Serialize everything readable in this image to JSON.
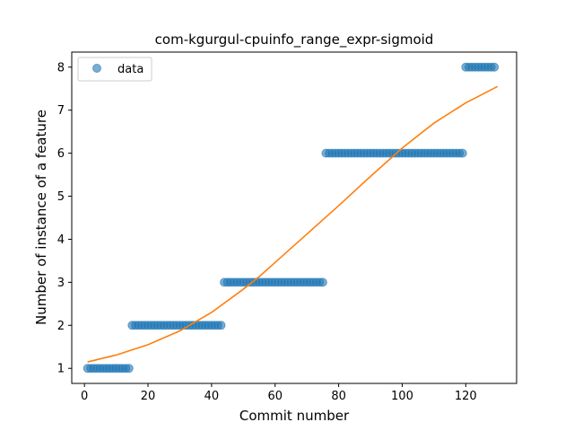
{
  "chart_data": {
    "type": "scatter",
    "title": "com-kgurgul-cpuinfo_range_expr-sigmoid",
    "xlabel": "Commit number",
    "ylabel": "Number of instance of a feature",
    "xlim": [
      -4,
      136
    ],
    "ylim": [
      0.65,
      8.35
    ],
    "xticks": [
      0,
      20,
      40,
      60,
      80,
      100,
      120
    ],
    "yticks": [
      1,
      2,
      3,
      4,
      5,
      6,
      7,
      8
    ],
    "grid": false,
    "legend_position": "upper-left",
    "series": [
      {
        "name": "data",
        "kind": "scatter",
        "color": "#1f77b4",
        "segments": [
          {
            "x_start": 1,
            "x_end": 15,
            "y": 1
          },
          {
            "x_start": 15,
            "x_end": 44,
            "y": 2
          },
          {
            "x_start": 44,
            "x_end": 76,
            "y": 3
          },
          {
            "x_start": 76,
            "x_end": 120,
            "y": 6
          },
          {
            "x_start": 120,
            "x_end": 130,
            "y": 8
          }
        ]
      },
      {
        "kind": "line",
        "color": "#ff7f0e",
        "x": [
          1,
          10,
          20,
          30,
          40,
          50,
          55,
          60,
          70,
          80,
          90,
          100,
          110,
          120,
          130
        ],
        "y": [
          1.15,
          1.31,
          1.55,
          1.87,
          2.3,
          2.84,
          3.13,
          3.46,
          4.12,
          4.78,
          5.46,
          6.12,
          6.7,
          7.17,
          7.55
        ]
      }
    ]
  }
}
